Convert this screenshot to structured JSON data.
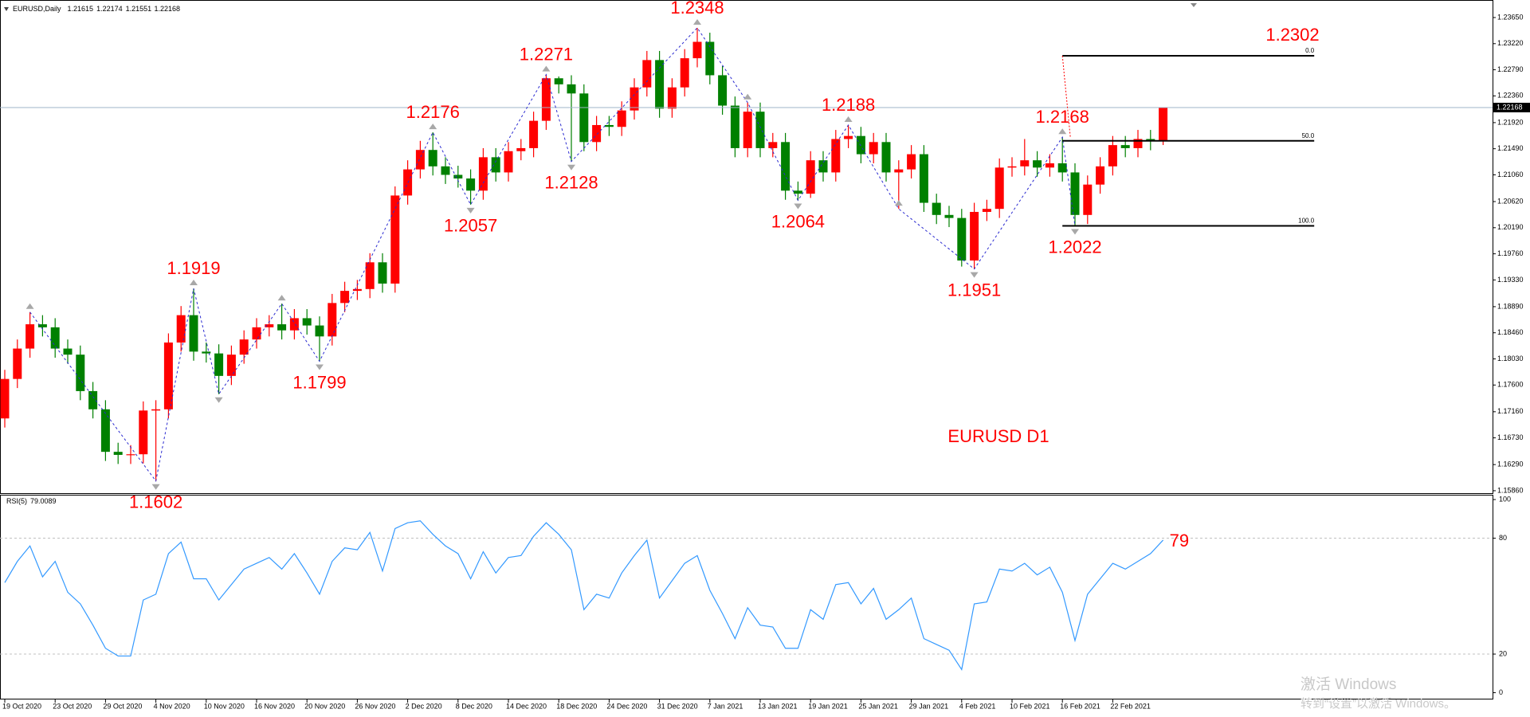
{
  "chart_data": {
    "type": "candlestick",
    "title": "EURUSD,Daily",
    "annotation": "EURUSD D1",
    "categories": [
      "19 Oct 2020",
      null,
      null,
      null,
      "23 Oct 2020",
      null,
      null,
      null,
      "29 Oct 2020",
      null,
      null,
      null,
      "4 Nov 2020",
      null,
      null,
      null,
      "10 Nov 2020",
      null,
      null,
      null,
      "16 Nov 2020",
      null,
      null,
      null,
      "20 Nov 2020",
      null,
      null,
      null,
      "26 Nov 2020",
      null,
      null,
      null,
      "2 Dec 2020",
      null,
      null,
      null,
      "8 Dec 2020",
      null,
      null,
      null,
      "14 Dec 2020",
      null,
      null,
      null,
      "18 Dec 2020",
      null,
      null,
      null,
      "24 Dec 2020",
      null,
      null,
      null,
      "31 Dec 2020",
      null,
      null,
      null,
      "7 Jan 2021",
      null,
      null,
      null,
      "13 Jan 2021",
      null,
      null,
      null,
      "19 Jan 2021",
      null,
      null,
      null,
      "25 Jan 2021",
      null,
      null,
      null,
      "29 Jan 2021",
      null,
      null,
      null,
      "4 Feb 2021",
      null,
      null,
      null,
      "10 Feb 2021",
      null,
      null,
      null,
      "16 Feb 2021",
      null,
      null,
      null,
      "22 Feb 2021",
      null,
      null,
      null,
      null
    ],
    "ohlc": {
      "open": [
        1.1705,
        1.177,
        1.182,
        1.186,
        1.1855,
        1.182,
        1.181,
        1.175,
        1.172,
        1.165,
        1.1645,
        1.1646,
        1.1718,
        1.172,
        1.183,
        1.1875,
        1.1815,
        1.1812,
        1.1775,
        1.181,
        1.1835,
        1.1855,
        1.186,
        1.185,
        1.187,
        1.1858,
        1.184,
        1.1895,
        1.1915,
        1.1918,
        1.1962,
        1.1927,
        1.2072,
        1.2115,
        1.2147,
        1.212,
        1.2106,
        1.21,
        1.208,
        1.2135,
        1.211,
        1.2145,
        1.215,
        1.2195,
        1.2265,
        1.2255,
        1.224,
        1.216,
        1.2188,
        1.2185,
        1.2212,
        1.225,
        1.2295,
        1.2215,
        1.225,
        1.2298,
        1.2325,
        1.227,
        1.222,
        1.215,
        1.221,
        1.215,
        1.216,
        1.208,
        1.2075,
        1.213,
        1.211,
        1.2165,
        1.217,
        1.214,
        1.216,
        1.211,
        1.2115,
        1.214,
        1.206,
        1.204,
        1.2035,
        1.1965,
        1.2045,
        1.205,
        1.2118,
        1.212,
        1.213,
        1.2118,
        1.2125,
        1.211,
        1.204,
        1.209,
        1.212,
        1.2155,
        1.215,
        1.2165,
        1.21615
      ],
      "high": [
        1.1785,
        1.1835,
        1.188,
        1.1875,
        1.187,
        1.1835,
        1.1825,
        1.1765,
        1.1735,
        1.1665,
        1.1661,
        1.1733,
        1.1735,
        1.1845,
        1.189,
        1.1919,
        1.183,
        1.1827,
        1.1825,
        1.185,
        1.187,
        1.1875,
        1.1894,
        1.1885,
        1.1885,
        1.1873,
        1.191,
        1.193,
        1.1933,
        1.1977,
        1.1977,
        1.2087,
        1.213,
        1.2162,
        1.2176,
        1.2135,
        1.2121,
        1.2115,
        1.215,
        1.215,
        1.216,
        1.2165,
        1.221,
        1.2271,
        1.2268,
        1.227,
        1.2255,
        1.2203,
        1.2203,
        1.2227,
        1.2265,
        1.231,
        1.231,
        1.2265,
        1.2313,
        1.2348,
        1.234,
        1.2285,
        1.2235,
        1.2225,
        1.2225,
        1.2175,
        1.2175,
        1.2095,
        1.2145,
        1.2145,
        1.218,
        1.2188,
        1.2185,
        1.2175,
        1.2175,
        1.213,
        1.2155,
        1.2155,
        1.2075,
        1.2055,
        1.205,
        1.206,
        1.2065,
        1.2133,
        1.2135,
        1.2165,
        1.2145,
        1.214,
        1.2168,
        1.2125,
        1.2105,
        1.2135,
        1.217,
        1.217,
        1.218,
        1.218,
        1.22174
      ],
      "low": [
        1.169,
        1.1755,
        1.1805,
        1.184,
        1.1805,
        1.1795,
        1.1735,
        1.1705,
        1.1635,
        1.163,
        1.163,
        1.1631,
        1.1602,
        1.1705,
        1.1815,
        1.18,
        1.1797,
        1.1745,
        1.176,
        1.1795,
        1.182,
        1.184,
        1.1835,
        1.1835,
        1.1843,
        1.1799,
        1.1825,
        1.188,
        1.19,
        1.1903,
        1.1912,
        1.1912,
        1.2057,
        1.21,
        1.2105,
        1.2091,
        1.2085,
        1.2057,
        1.2065,
        1.2095,
        1.2095,
        1.213,
        1.2135,
        1.218,
        1.224,
        1.2128,
        1.2145,
        1.2145,
        1.217,
        1.217,
        1.2197,
        1.2235,
        1.22,
        1.22,
        1.2235,
        1.2283,
        1.2255,
        1.2205,
        1.2135,
        1.2135,
        1.2135,
        1.2135,
        1.2065,
        1.2064,
        1.2068,
        1.2095,
        1.2095,
        1.215,
        1.2125,
        1.2125,
        1.2095,
        1.205,
        1.21,
        1.2045,
        1.2025,
        1.202,
        1.1955,
        1.1951,
        1.203,
        1.2035,
        1.2103,
        1.2105,
        1.2103,
        1.2103,
        1.2095,
        1.2022,
        1.2025,
        1.2075,
        1.2105,
        1.2135,
        1.2135,
        1.21465,
        1.21551
      ],
      "close": [
        1.177,
        1.182,
        1.186,
        1.1855,
        1.182,
        1.181,
        1.175,
        1.172,
        1.165,
        1.1645,
        1.1646,
        1.1718,
        1.172,
        1.183,
        1.1875,
        1.1815,
        1.1812,
        1.1775,
        1.181,
        1.1835,
        1.1855,
        1.186,
        1.185,
        1.187,
        1.1858,
        1.184,
        1.1895,
        1.1915,
        1.1918,
        1.1962,
        1.1927,
        1.2072,
        1.2115,
        1.2147,
        1.212,
        1.2106,
        1.21,
        1.208,
        1.2135,
        1.211,
        1.2145,
        1.215,
        1.2195,
        1.2265,
        1.2255,
        1.224,
        1.216,
        1.2188,
        1.2185,
        1.2212,
        1.225,
        1.2295,
        1.2215,
        1.225,
        1.2298,
        1.2325,
        1.227,
        1.222,
        1.215,
        1.221,
        1.215,
        1.216,
        1.208,
        1.2075,
        1.213,
        1.211,
        1.2165,
        1.217,
        1.214,
        1.216,
        1.211,
        1.2115,
        1.214,
        1.206,
        1.204,
        1.2035,
        1.1965,
        1.2045,
        1.205,
        1.2118,
        1.212,
        1.213,
        1.2118,
        1.2125,
        1.211,
        1.204,
        1.209,
        1.212,
        1.2155,
        1.215,
        1.2165,
        1.21615,
        1.22168
      ]
    },
    "up_color": "#ff0000",
    "down_color": "#008000",
    "ylim": [
      1.1582,
      1.2386
    ],
    "yticks": [
      {
        "value": 1.2365,
        "label": "1.23650"
      },
      {
        "value": 1.2322,
        "label": "1.23220"
      },
      {
        "value": 1.2279,
        "label": "1.22790"
      },
      {
        "value": 1.2236,
        "label": "1.22360"
      },
      {
        "value": 1.2192,
        "label": "1.21920"
      },
      {
        "value": 1.2149,
        "label": "1.21490"
      },
      {
        "value": 1.2106,
        "label": "1.21060"
      },
      {
        "value": 1.2062,
        "label": "1.20620"
      },
      {
        "value": 1.2019,
        "label": "1.20190"
      },
      {
        "value": 1.1976,
        "label": "1.19760"
      },
      {
        "value": 1.1933,
        "label": "1.19330"
      },
      {
        "value": 1.1889,
        "label": "1.18890"
      },
      {
        "value": 1.1846,
        "label": "1.18460"
      },
      {
        "value": 1.1803,
        "label": "1.18030"
      },
      {
        "value": 1.176,
        "label": "1.17600"
      },
      {
        "value": 1.1716,
        "label": "1.17160"
      },
      {
        "value": 1.1673,
        "label": "1.16730"
      },
      {
        "value": 1.1629,
        "label": "1.16290"
      },
      {
        "value": 1.1586,
        "label": "1.15860"
      }
    ],
    "zigzag_color": "#2b2bd0",
    "label_color": "#ff0000",
    "zigzag": [
      {
        "bar": 2,
        "price": 1.188
      },
      {
        "bar": 12,
        "price": 1.1602,
        "show_label": true
      },
      {
        "bar": 15,
        "price": 1.1919,
        "show_label": true
      },
      {
        "bar": 17,
        "price": 1.1745
      },
      {
        "bar": 22,
        "price": 1.1894
      },
      {
        "bar": 25,
        "price": 1.1799,
        "show_label": true
      },
      {
        "bar": 34,
        "price": 1.2176,
        "show_label": true
      },
      {
        "bar": 37,
        "price": 1.2057,
        "show_label": true
      },
      {
        "bar": 43,
        "price": 1.2271,
        "show_label": true
      },
      {
        "bar": 45,
        "price": 1.2128,
        "show_label": true
      },
      {
        "bar": 55,
        "price": 1.2348,
        "show_label": true
      },
      {
        "bar": 59,
        "price": 1.2225
      },
      {
        "bar": 63,
        "price": 1.2064,
        "show_label": true
      },
      {
        "bar": 67,
        "price": 1.2188,
        "show_label": true
      },
      {
        "bar": 71,
        "price": 1.205
      },
      {
        "bar": 77,
        "price": 1.1951,
        "show_label": true
      },
      {
        "bar": 84,
        "price": 1.2168,
        "show_label": true
      },
      {
        "bar": 85,
        "price": 1.2022,
        "show_label": true
      }
    ],
    "fibonacci": {
      "from_bar": 84,
      "to_bar": 104,
      "high": 1.2302,
      "low": 1.2022,
      "levels": [
        {
          "value": 0,
          "label": "0.0"
        },
        {
          "value": 50,
          "label": "50.0"
        },
        {
          "value": 100,
          "label": "100.0"
        }
      ]
    },
    "rsi": {
      "name": "RSI(5)",
      "color": "#3399ff",
      "value_label": "79",
      "values": [
        57,
        68,
        76,
        60,
        68,
        52,
        46,
        35,
        23,
        19,
        19,
        48,
        51,
        72,
        78,
        59,
        59,
        48,
        56,
        64,
        67,
        70,
        64,
        72,
        62,
        51,
        68,
        75,
        74,
        83,
        63,
        85,
        88,
        89,
        82,
        76,
        72,
        59,
        73,
        62,
        70,
        71,
        81,
        88,
        82,
        74,
        43,
        51,
        49,
        62,
        71,
        79,
        49,
        58,
        67,
        71,
        53,
        41,
        28,
        44,
        35,
        34,
        23,
        23,
        43,
        38,
        56,
        57,
        46,
        54,
        38,
        43,
        49,
        28,
        25,
        22,
        12,
        46,
        47,
        64,
        63,
        67,
        61,
        65,
        52,
        27,
        51,
        59,
        67,
        64,
        68,
        72,
        79.0089
      ],
      "ylim": [
        -3.5,
        102.5
      ],
      "yticks": [
        100,
        80,
        20,
        0
      ],
      "levels": [
        80,
        20
      ]
    },
    "watermark": {
      "line1": "激活 Windows",
      "line2": "转到“设置”以激活 Windows。"
    }
  }
}
